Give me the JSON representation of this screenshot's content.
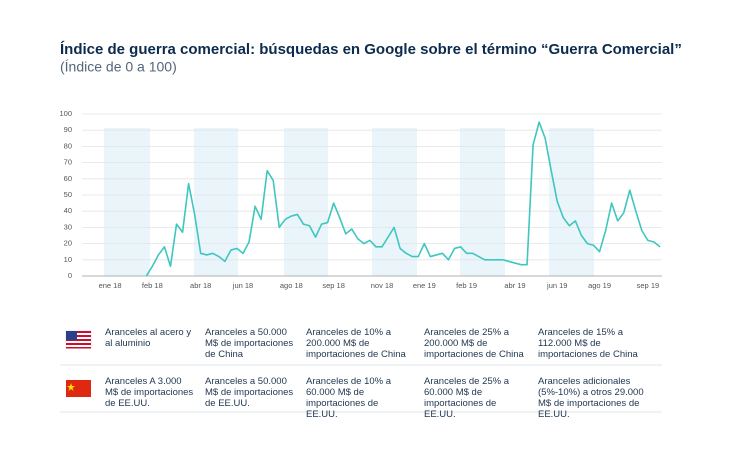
{
  "chart_data": {
    "type": "line",
    "title": "Índice de guerra comercial: búsquedas en Google sobre el término “Guerra Comercial”",
    "subtitle": "(Índice de 0 a 100)",
    "categories": [
      null,
      "ene 18",
      null,
      null,
      null,
      null,
      null,
      null,
      "feb 18",
      null,
      null,
      null,
      null,
      null,
      null,
      null,
      "abr 18",
      null,
      null,
      null,
      null,
      null,
      null,
      "jun 18",
      null,
      null,
      null,
      null,
      null,
      null,
      null,
      "ago 18",
      null,
      null,
      null,
      null,
      null,
      null,
      "sep 18",
      null,
      null,
      null,
      null,
      null,
      null,
      null,
      "nov 18",
      null,
      null,
      null,
      null,
      null,
      null,
      "ene 19",
      null,
      null,
      null,
      null,
      null,
      null,
      "feb 19",
      null,
      null,
      null,
      null,
      null,
      null,
      null,
      "abr 19",
      null,
      null,
      null,
      null,
      null,
      null,
      "jun 19",
      null,
      null,
      null,
      null,
      null,
      null,
      "ago 19",
      null,
      null,
      null,
      null,
      null,
      null,
      null,
      "sep 19",
      null,
      null
    ],
    "series": [
      {
        "name": "Índice",
        "color": "#3fc6bf",
        "values": [
          null,
          null,
          null,
          null,
          null,
          null,
          null,
          0,
          6,
          13,
          18,
          6,
          32,
          27,
          57,
          38,
          14,
          13,
          14,
          12,
          9,
          16,
          17,
          14,
          21,
          43,
          35,
          65,
          59,
          30,
          35,
          37,
          38,
          32,
          31,
          24,
          32,
          33,
          45,
          36,
          26,
          29,
          23,
          20,
          22,
          18,
          18,
          24,
          30,
          17,
          14,
          12,
          12,
          20,
          12,
          13,
          14,
          10,
          17,
          18,
          14,
          14,
          12,
          10,
          10,
          10,
          10,
          9,
          8,
          7,
          7,
          81,
          95,
          85,
          65,
          46,
          36,
          31,
          34,
          25,
          20,
          19,
          15,
          28,
          45,
          34,
          39,
          53,
          40,
          28,
          22,
          21,
          18
        ]
      }
    ],
    "ylim": [
      0,
      100
    ],
    "yticks": [
      0,
      10,
      20,
      30,
      40,
      50,
      60,
      70,
      80,
      90,
      100
    ],
    "grid": true
  },
  "measures": {
    "usa": [
      "Aranceles al acero y al aluminio",
      "Aranceles a 50.000 M$ de importaciones de China",
      "Aranceles de 10% a 200.000 M$ de importaciones de China",
      "Aranceles de 25% a 200.000 M$ de importaciones de China",
      "Aranceles de 15% a 112.000 M$ de importaciones de China"
    ],
    "china": [
      "Aranceles A 3.000 M$ de importaciones de EE.UU.",
      "Aranceles a 50.000 M$ de importaciones de EE.UU.",
      "Aranceles de 10% a 60.000 M$ de importaciones de EE.UU.",
      "Aranceles de 25% a 60.000 M$ de importaciones de EE.UU.",
      "Aranceles adicionales (5%-10%) a otros 29.000 M$ de importaciones de EE.UU."
    ]
  }
}
